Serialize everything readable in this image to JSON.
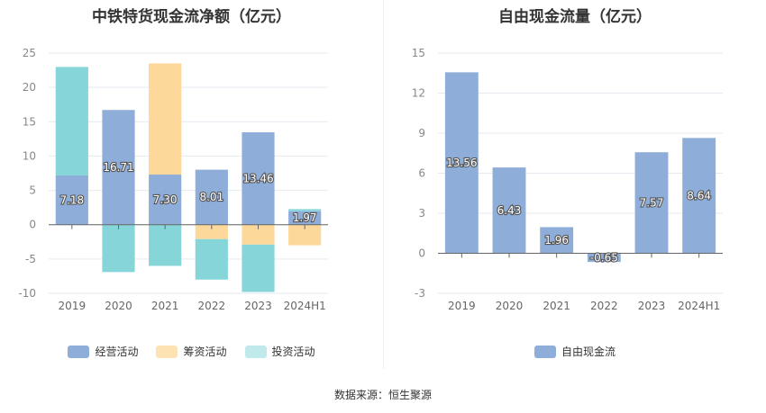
{
  "source_text": "数据来源：恒生聚源",
  "chart_data": [
    {
      "type": "bar",
      "stacked": true,
      "title": "中铁特货现金流净额（亿元）",
      "categories": [
        "2019",
        "2020",
        "2021",
        "2022",
        "2023",
        "2024H1"
      ],
      "series": [
        {
          "name": "经营活动",
          "color": "#8eadd9",
          "values": [
            7.18,
            16.71,
            7.3,
            8.01,
            13.46,
            1.97
          ]
        },
        {
          "name": "筹资活动",
          "color": "#fcd99a",
          "values": [
            0,
            0,
            16.2,
            -2.1,
            -2.9,
            -3.0
          ]
        },
        {
          "name": "投资活动",
          "color": "#86d6d9",
          "values": [
            15.8,
            -6.9,
            -6.0,
            -5.9,
            -6.9,
            0.3
          ]
        }
      ],
      "data_labels": [
        "7.18",
        "16.71",
        "7.30",
        "8.01",
        "13.46",
        "1.97"
      ],
      "ylim": [
        -10,
        25
      ],
      "yticks": [
        -10,
        -5,
        0,
        5,
        10,
        15,
        20,
        25
      ],
      "grid": true,
      "legend_position": "bottom"
    },
    {
      "type": "bar",
      "title": "自由现金流量（亿元）",
      "categories": [
        "2019",
        "2020",
        "2021",
        "2022",
        "2023",
        "2024H1"
      ],
      "series": [
        {
          "name": "自由现金流",
          "color": "#8eadd9",
          "values": [
            13.56,
            6.43,
            1.96,
            -0.65,
            7.57,
            8.64
          ]
        }
      ],
      "data_labels": [
        "13.56",
        "6.43",
        "1.96",
        "-0.65",
        "7.57",
        "8.64"
      ],
      "ylim": [
        -3,
        15
      ],
      "yticks": [
        -3,
        0,
        3,
        6,
        9,
        12,
        15
      ],
      "grid": true,
      "legend_position": "bottom"
    }
  ]
}
